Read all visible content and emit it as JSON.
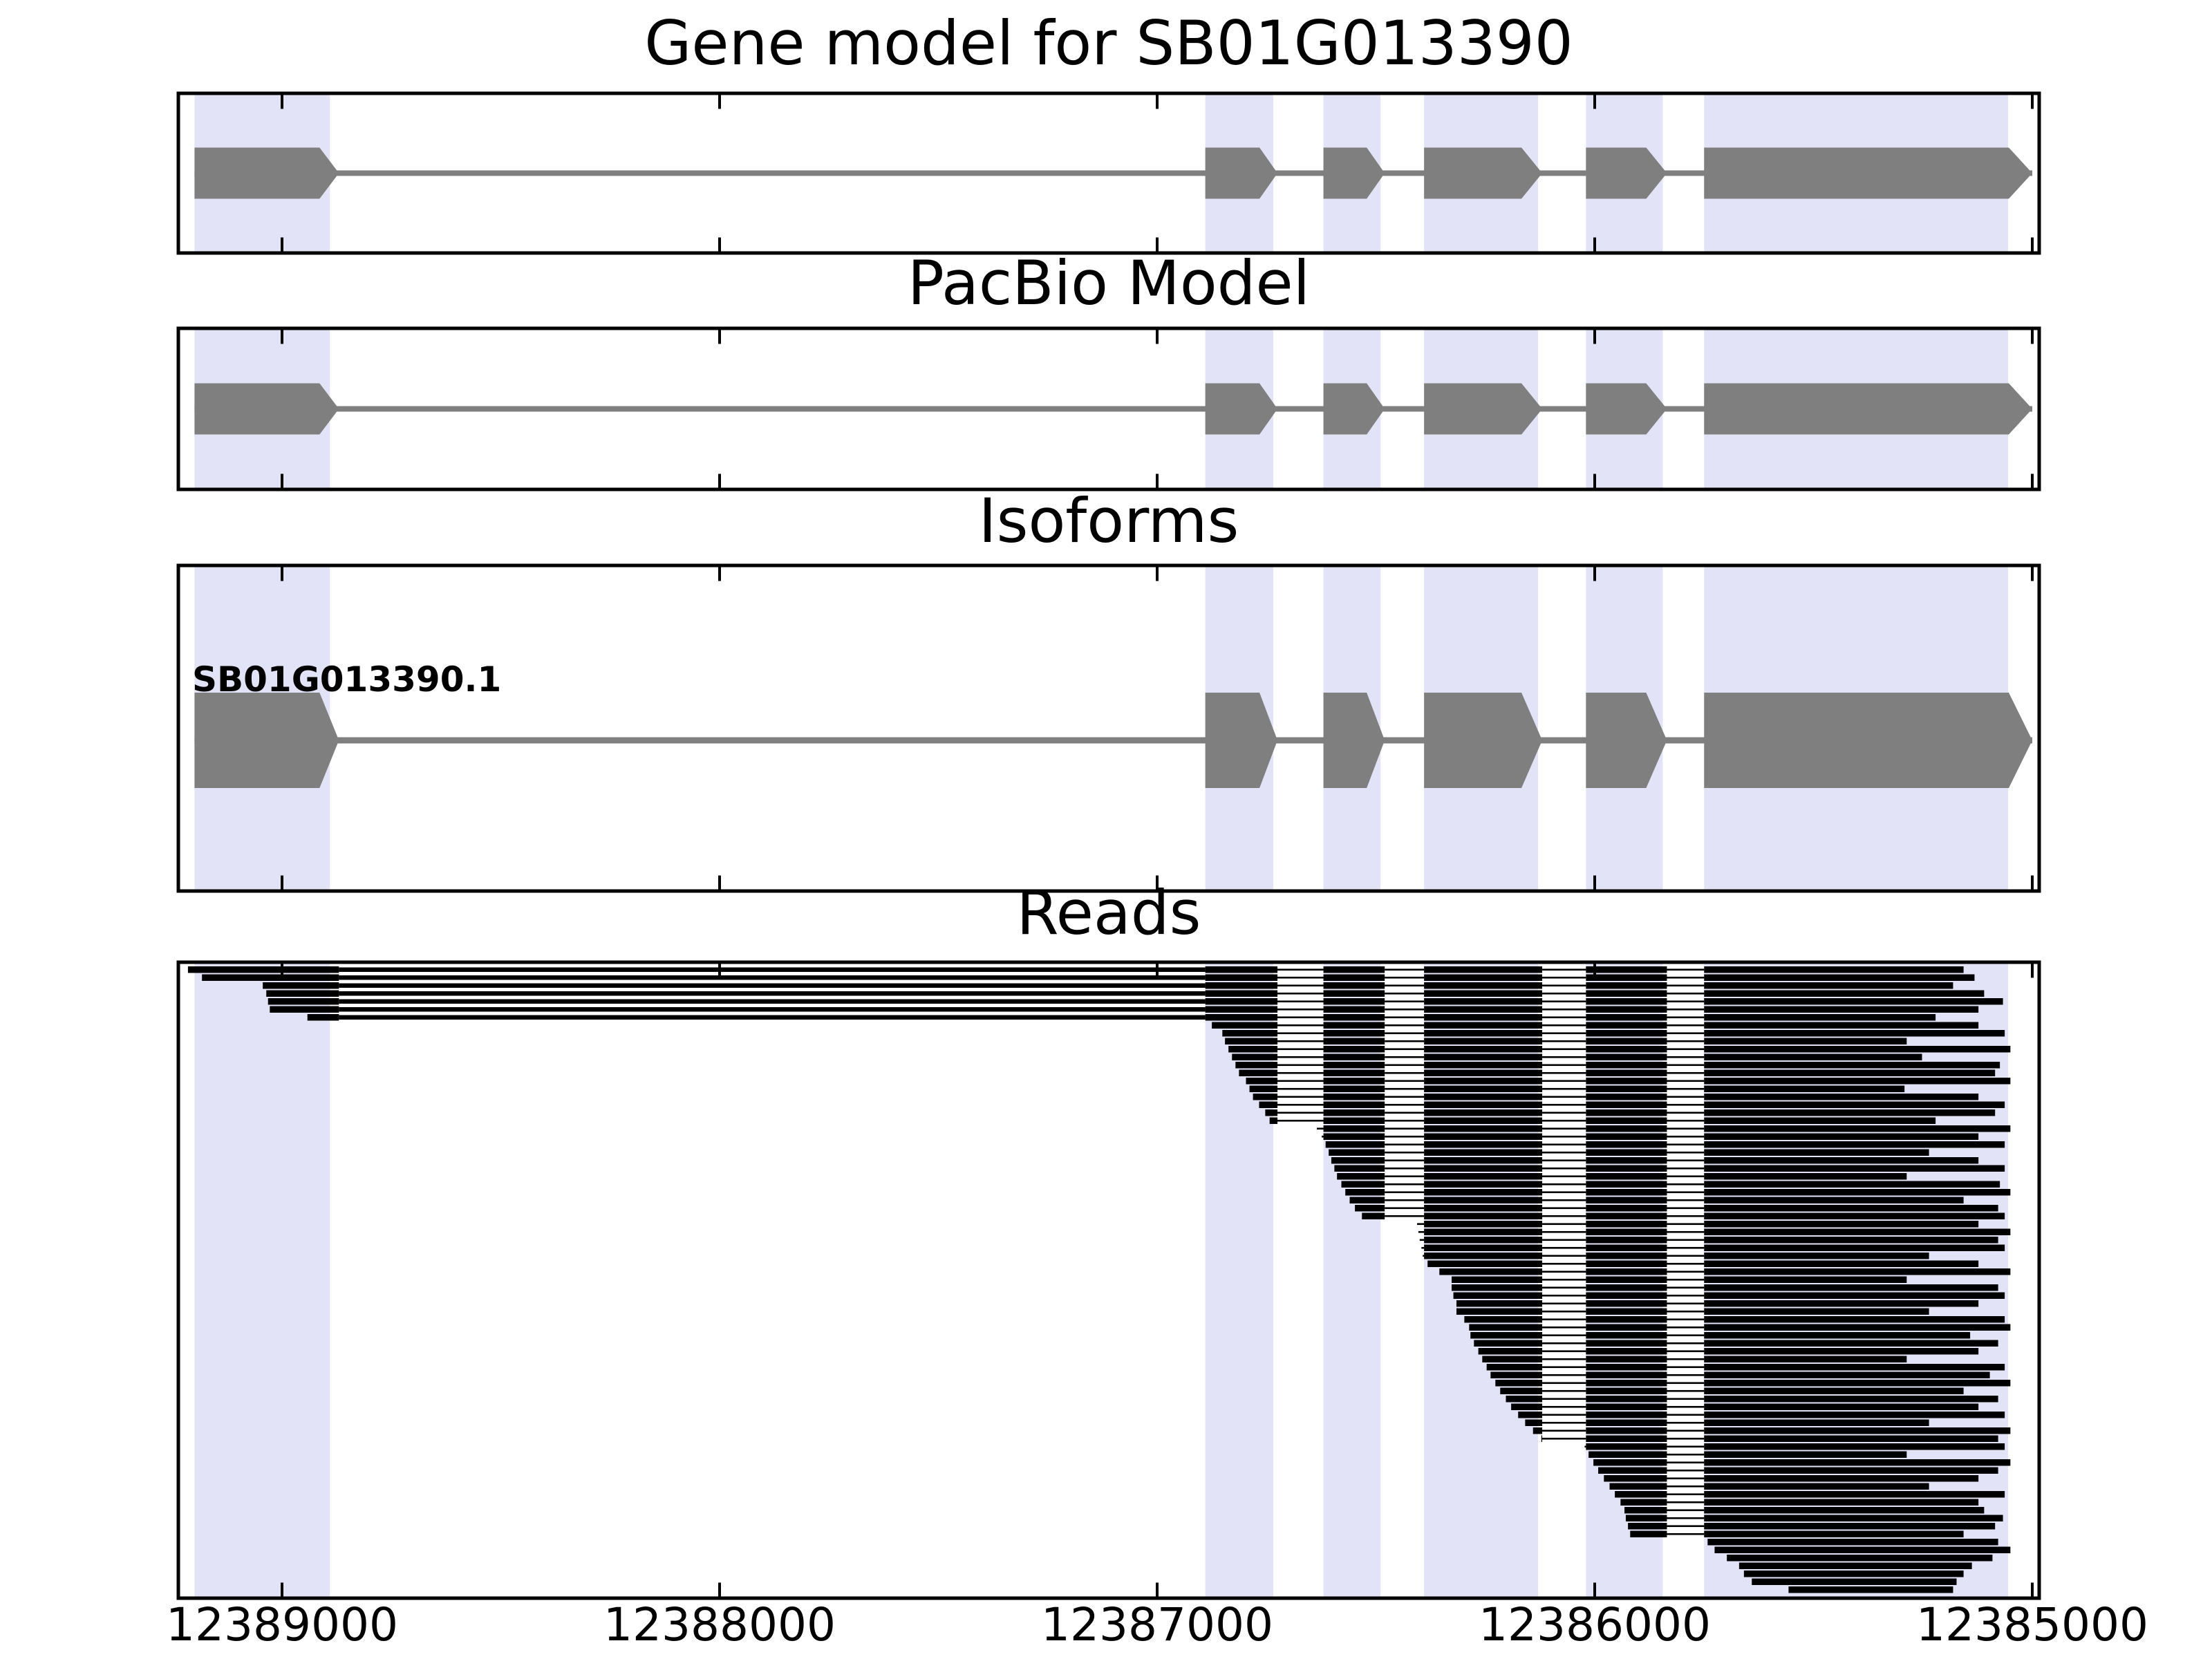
{
  "chart_data": {
    "type": "genomic-tracks",
    "gene_id": "SB01G013390",
    "x_axis": {
      "unit": "bp",
      "direction": "decreasing",
      "tick_labels": [
        "12389000",
        "12388000",
        "12387000",
        "12386000",
        "12385000"
      ],
      "tick_values": [
        12389000,
        12388000,
        12387000,
        12386000,
        12385000
      ],
      "range_bp": [
        12389240,
        12384985
      ],
      "grid": false
    },
    "gene_structure": {
      "strand_arrow": "right",
      "exons_bp": [
        [
          12389200,
          12388870
        ],
        [
          12386890,
          12386725
        ],
        [
          12386620,
          12386480
        ],
        [
          12386390,
          12386120
        ],
        [
          12386020,
          12385835
        ],
        [
          12385750,
          12385000
        ]
      ]
    },
    "panels": [
      {
        "title": "Gene model for SB01G013390",
        "kind": "gene-model"
      },
      {
        "title": "PacBio Model",
        "kind": "gene-model"
      },
      {
        "title": "Isoforms",
        "kind": "isoform-list",
        "isoforms": [
          {
            "name": "SB01G013390.1"
          }
        ]
      },
      {
        "title": "Reads",
        "kind": "read-pileup",
        "reads_bp": [
          [
            12389215,
            12385157
          ],
          [
            12389183,
            12385132
          ],
          [
            12389044,
            12385181
          ],
          [
            12389036,
            12385110
          ],
          [
            12389032,
            12385067
          ],
          [
            12389028,
            12385123
          ],
          [
            12388942,
            12385221
          ],
          [
            12386875,
            12385123
          ],
          [
            12386851,
            12385063
          ],
          [
            12386845,
            12385287
          ],
          [
            12386837,
            12385050
          ],
          [
            12386829,
            12385252
          ],
          [
            12386821,
            12385074
          ],
          [
            12386813,
            12385085
          ],
          [
            12386797,
            12385050
          ],
          [
            12386789,
            12385292
          ],
          [
            12386781,
            12385123
          ],
          [
            12386767,
            12385063
          ],
          [
            12386753,
            12385085
          ],
          [
            12386743,
            12385221
          ],
          [
            12386635,
            12385050
          ],
          [
            12386624,
            12385123
          ],
          [
            12386615,
            12385063
          ],
          [
            12386608,
            12385236
          ],
          [
            12386602,
            12385123
          ],
          [
            12386595,
            12385063
          ],
          [
            12386589,
            12385287
          ],
          [
            12386579,
            12385074
          ],
          [
            12386570,
            12385050
          ],
          [
            12386560,
            12385157
          ],
          [
            12386548,
            12385078
          ],
          [
            12386532,
            12385063
          ],
          [
            12386406,
            12385123
          ],
          [
            12386403,
            12385050
          ],
          [
            12386400,
            12385078
          ],
          [
            12386396,
            12385063
          ],
          [
            12386393,
            12385236
          ],
          [
            12386382,
            12385123
          ],
          [
            12386355,
            12385050
          ],
          [
            12386327,
            12385287
          ],
          [
            12386327,
            12385078
          ],
          [
            12386323,
            12385063
          ],
          [
            12386316,
            12385123
          ],
          [
            12386316,
            12385236
          ],
          [
            12386298,
            12385063
          ],
          [
            12386287,
            12385050
          ],
          [
            12386284,
            12385142
          ],
          [
            12386276,
            12385078
          ],
          [
            12386266,
            12385123
          ],
          [
            12386257,
            12385287
          ],
          [
            12386247,
            12385063
          ],
          [
            12386238,
            12385097
          ],
          [
            12386227,
            12385050
          ],
          [
            12386216,
            12385157
          ],
          [
            12386203,
            12385078
          ],
          [
            12386191,
            12385123
          ],
          [
            12386175,
            12385063
          ],
          [
            12386159,
            12385236
          ],
          [
            12386141,
            12385050
          ],
          [
            12386122,
            12385078
          ],
          [
            12386023,
            12385063
          ],
          [
            12386014,
            12385287
          ],
          [
            12386003,
            12385050
          ],
          [
            12385992,
            12385078
          ],
          [
            12385979,
            12385123
          ],
          [
            12385966,
            12385236
          ],
          [
            12385954,
            12385063
          ],
          [
            12385941,
            12385123
          ],
          [
            12385932,
            12385110
          ],
          [
            12385929,
            12385067
          ],
          [
            12385924,
            12385085
          ],
          [
            12385919,
            12385157
          ],
          [
            12385742,
            12385078
          ],
          [
            12385726,
            12385050
          ],
          [
            12385698,
            12385091
          ],
          [
            12385670,
            12385138
          ],
          [
            12385659,
            12385157
          ],
          [
            12385641,
            12385173
          ],
          [
            12385557,
            12385181
          ]
        ]
      }
    ],
    "colors": {
      "exon_fill": "#7f7f7f",
      "intron_line": "#7f7f7f",
      "exon_highlight_band": "#e3e3f8",
      "read_fill": "#000000",
      "panel_border": "#000000",
      "background": "#ffffff",
      "text": "#000000"
    }
  }
}
